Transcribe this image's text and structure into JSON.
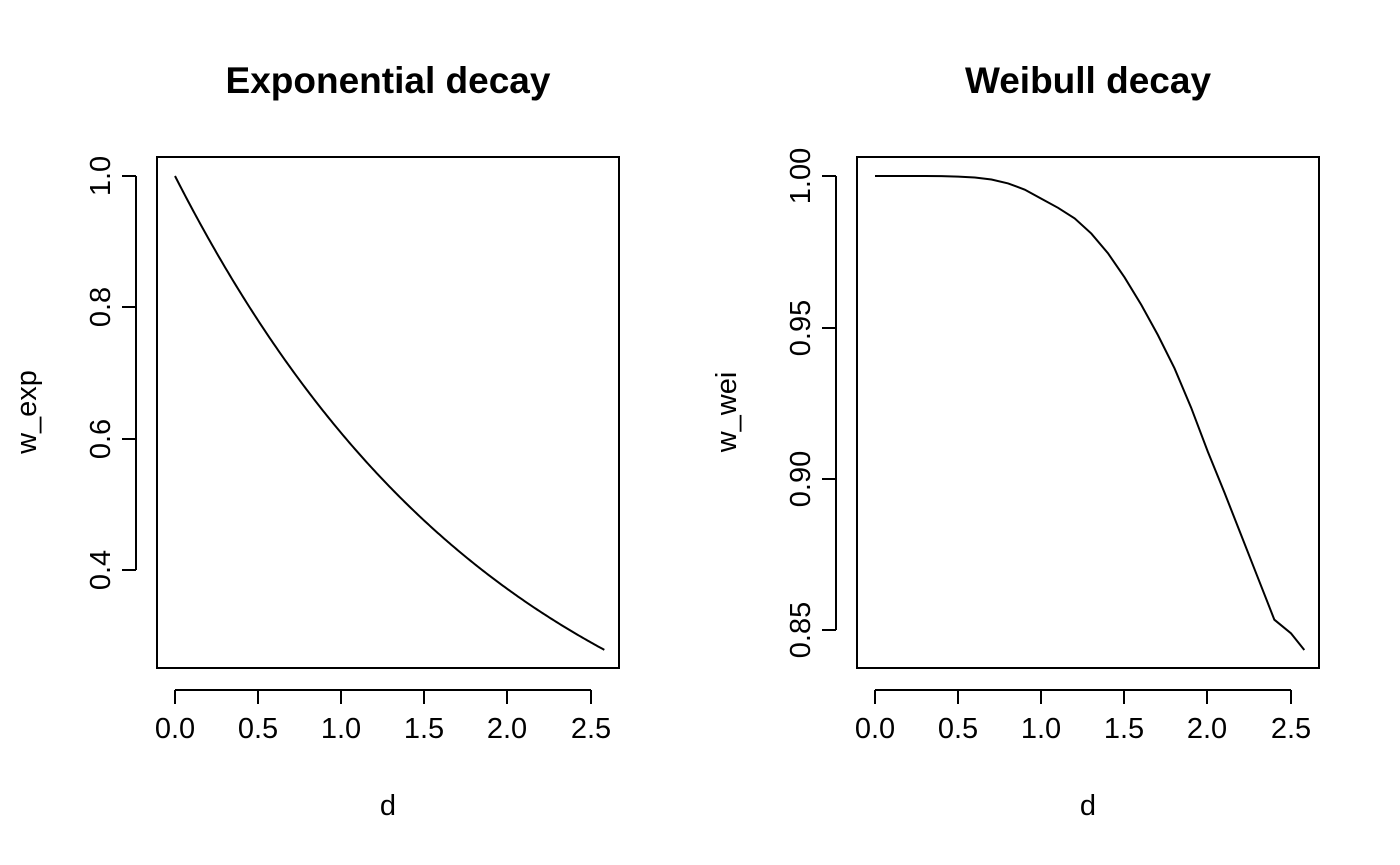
{
  "chart_data": [
    {
      "type": "line",
      "title": "Exponential decay",
      "xlabel": "d",
      "ylabel": "w_exp",
      "xlim": [
        0,
        2.58
      ],
      "ylim": [
        0.275,
        1.0
      ],
      "xticks": [
        0,
        0.5,
        1,
        1.5,
        2,
        2.5
      ],
      "xtick_labels": [
        "0.0",
        "0.5",
        "1.0",
        "1.5",
        "2.0",
        "2.5"
      ],
      "yticks": [
        0.4,
        0.6,
        0.8,
        1.0
      ],
      "ytick_labels": [
        "0.4",
        "0.6",
        "0.8",
        "1.0"
      ],
      "grid": false,
      "series": [
        {
          "x": [
            0.0,
            0.1,
            0.2,
            0.3,
            0.4,
            0.5,
            0.6,
            0.7,
            0.8,
            0.9,
            1.0,
            1.1,
            1.2,
            1.3,
            1.4,
            1.5,
            1.6,
            1.7,
            1.8,
            1.9,
            2.0,
            2.1,
            2.2,
            2.3,
            2.4,
            2.5,
            2.58
          ],
          "y": [
            1.0,
            0.9512,
            0.9048,
            0.8607,
            0.8187,
            0.7788,
            0.7408,
            0.7047,
            0.6703,
            0.6376,
            0.6065,
            0.5769,
            0.5488,
            0.522,
            0.4966,
            0.4724,
            0.4493,
            0.4274,
            0.4066,
            0.3867,
            0.3679,
            0.3499,
            0.3329,
            0.3166,
            0.3012,
            0.2865,
            0.2753
          ]
        }
      ]
    },
    {
      "type": "line",
      "title": "Weibull decay",
      "xlabel": "d",
      "ylabel": "w_wei",
      "xlim": [
        0,
        2.58
      ],
      "ylim": [
        0.8435,
        1.0
      ],
      "xticks": [
        0,
        0.5,
        1,
        1.5,
        2,
        2.5
      ],
      "xtick_labels": [
        "0.0",
        "0.5",
        "1.0",
        "1.5",
        "2.0",
        "2.5"
      ],
      "yticks": [
        0.85,
        0.9,
        0.95,
        1.0
      ],
      "ytick_labels": [
        "0.85",
        "0.90",
        "0.95",
        "1.00"
      ],
      "grid": false,
      "series": [
        {
          "x": [
            0.0,
            0.1,
            0.2,
            0.3,
            0.4,
            0.5,
            0.6,
            0.7,
            0.8,
            0.9,
            1.0,
            1.1,
            1.2,
            1.3,
            1.4,
            1.5,
            1.6,
            1.7,
            1.8,
            1.9,
            2.0,
            2.1,
            2.2,
            2.3,
            2.4,
            2.5,
            2.58
          ],
          "y": [
            1.0,
            1.0,
            1.0,
            0.99998,
            0.99995,
            0.9998,
            0.9995,
            0.99883,
            0.99755,
            0.9955,
            0.9925,
            0.9895,
            0.986,
            0.981,
            0.9745,
            0.9665,
            0.9575,
            0.9475,
            0.9365,
            0.9235,
            0.909,
            0.8955,
            0.8815,
            0.8675,
            0.8535,
            0.849,
            0.8435
          ]
        }
      ]
    }
  ]
}
